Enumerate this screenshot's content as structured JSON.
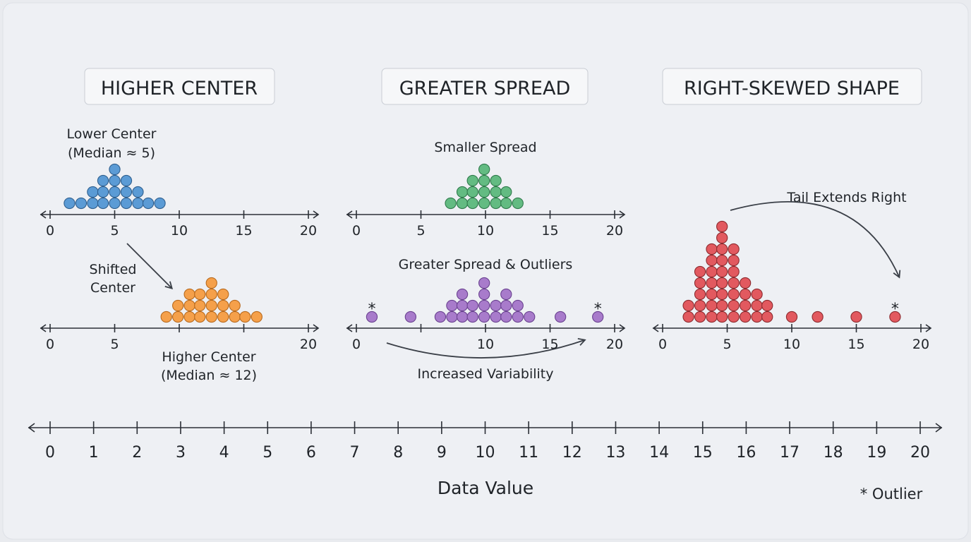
{
  "colors": {
    "background": "#eef0f4",
    "blue": "#5b9bd5",
    "orange": "#f5a04a",
    "green": "#63bb82",
    "purple": "#a87bcb",
    "red": "#e2595f"
  },
  "panels": [
    {
      "title": "HIGHER CENTER"
    },
    {
      "title": "GREATER SPREAD"
    },
    {
      "title": "RIGHT-SKEWED SHAPE"
    }
  ],
  "labels": {
    "lower_center_1": "Lower Center",
    "lower_center_2": "(Median ≈ 5)",
    "shifted_1": "Shifted",
    "shifted_2": "Center",
    "higher_center_1": "Higher Center",
    "higher_center_2": "(Median ≈ 12)",
    "smaller_spread": "Smaller Spread",
    "greater_spread": "Greater Spread & Outliers",
    "increased_variability": "Increased Variability",
    "tail": "Tail Extends Right",
    "outlier_mark": "*",
    "xlabel": "Data Value",
    "legend_outlier": "* Outlier"
  },
  "plots": [
    {
      "id": "lower-center",
      "color": "blue",
      "tick_labels": [
        "0",
        "5",
        "10",
        "15",
        "20"
      ],
      "columns": [
        [
          1.5,
          1
        ],
        [
          2.4,
          1
        ],
        [
          3.3,
          2
        ],
        [
          4.1,
          3
        ],
        [
          5.0,
          4
        ],
        [
          5.9,
          3
        ],
        [
          6.8,
          2
        ],
        [
          7.6,
          1
        ],
        [
          8.5,
          1
        ]
      ],
      "outliers": []
    },
    {
      "id": "higher-center",
      "color": "orange",
      "tick_labels": [
        "0",
        "5",
        "",
        "",
        "20"
      ],
      "columns": [
        [
          9.0,
          1
        ],
        [
          9.9,
          2
        ],
        [
          10.8,
          3
        ],
        [
          11.6,
          3
        ],
        [
          12.5,
          4
        ],
        [
          13.4,
          3
        ],
        [
          14.3,
          2
        ],
        [
          15.1,
          1
        ],
        [
          16.0,
          1
        ]
      ],
      "outliers": []
    },
    {
      "id": "smaller-spread",
      "color": "green",
      "tick_labels": [
        "0",
        "5",
        "10",
        "15",
        "20"
      ],
      "columns": [
        [
          7.3,
          1
        ],
        [
          8.2,
          2
        ],
        [
          9.0,
          3
        ],
        [
          9.9,
          4
        ],
        [
          10.8,
          3
        ],
        [
          11.6,
          2
        ],
        [
          12.5,
          1
        ]
      ],
      "outliers": []
    },
    {
      "id": "greater-spread",
      "color": "purple",
      "tick_labels": [
        "0",
        "",
        "10",
        "15",
        "20"
      ],
      "columns": [
        [
          1.2,
          1
        ],
        [
          4.2,
          1
        ],
        [
          6.5,
          1
        ],
        [
          7.4,
          2
        ],
        [
          8.2,
          3
        ],
        [
          9.0,
          2
        ],
        [
          9.9,
          4
        ],
        [
          10.8,
          2
        ],
        [
          11.6,
          3
        ],
        [
          12.5,
          2
        ],
        [
          13.4,
          1
        ],
        [
          15.8,
          1
        ],
        [
          18.7,
          1
        ]
      ],
      "outliers": [
        1.2,
        18.7
      ]
    },
    {
      "id": "right-skewed",
      "color": "red",
      "tick_labels": [
        "0",
        "5",
        "10",
        "15",
        "20"
      ],
      "columns": [
        [
          2.0,
          2
        ],
        [
          2.9,
          5
        ],
        [
          3.8,
          7
        ],
        [
          4.6,
          9
        ],
        [
          5.5,
          7
        ],
        [
          6.4,
          4
        ],
        [
          7.3,
          3
        ],
        [
          8.1,
          2
        ],
        [
          10.0,
          1
        ],
        [
          12.0,
          1
        ],
        [
          15.0,
          1
        ],
        [
          18.0,
          1
        ]
      ],
      "outliers": [
        18.0
      ]
    }
  ],
  "main_axis": {
    "ticks": [
      "0",
      "1",
      "2",
      "3",
      "4",
      "5",
      "6",
      "7",
      "8",
      "9",
      "10",
      "11",
      "12",
      "13",
      "14",
      "15",
      "16",
      "17",
      "18",
      "19",
      "20"
    ]
  }
}
